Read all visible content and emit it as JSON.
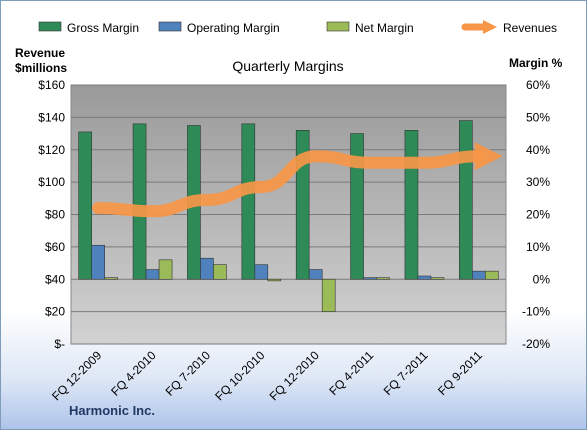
{
  "chart_data": {
    "type": "bar",
    "title": "Quarterly Margins",
    "company": "Harmonic Inc.",
    "left_axis_title": [
      "Revenue",
      "$millions"
    ],
    "right_axis_title": "Margin %",
    "categories": [
      "FQ 12-2009",
      "FQ 4-2010",
      "FQ 7-2010",
      "FQ 10-2010",
      "FQ 12-2010",
      "FQ 4-2011",
      "FQ 7-2011",
      "FQ 9-2011"
    ],
    "left_axis": {
      "min": 0,
      "max": 160,
      "step": 20,
      "tick_labels": [
        "$-",
        "$20",
        "$40",
        "$60",
        "$80",
        "$100",
        "$120",
        "$140",
        "$160"
      ]
    },
    "right_axis": {
      "min": -20,
      "max": 60,
      "step": 10,
      "tick_labels": [
        "-20%",
        "-10%",
        "0%",
        "10%",
        "20%",
        "30%",
        "40%",
        "50%",
        "60%"
      ]
    },
    "series": [
      {
        "name": "Gross Margin",
        "type": "bar",
        "axis": "right",
        "color": "#2e8b57",
        "values": [
          45.5,
          48,
          47.5,
          48,
          46,
          45,
          46,
          49
        ]
      },
      {
        "name": "Operating Margin",
        "type": "bar",
        "axis": "right",
        "color": "#4f81bd",
        "values": [
          10.5,
          3,
          6.5,
          4.5,
          3,
          0.5,
          1,
          2.5
        ]
      },
      {
        "name": "Net Margin",
        "type": "bar",
        "axis": "right",
        "color": "#9bbb59",
        "values": [
          0.5,
          6,
          4.5,
          -0.5,
          -10,
          0.5,
          0.5,
          2.5
        ]
      },
      {
        "name": "Revenues",
        "type": "line",
        "axis": "left",
        "color": "#f79646",
        "values": [
          84,
          82,
          89,
          97,
          116,
          112,
          112,
          116
        ]
      }
    ],
    "grid": true,
    "legend_position": "top"
  }
}
